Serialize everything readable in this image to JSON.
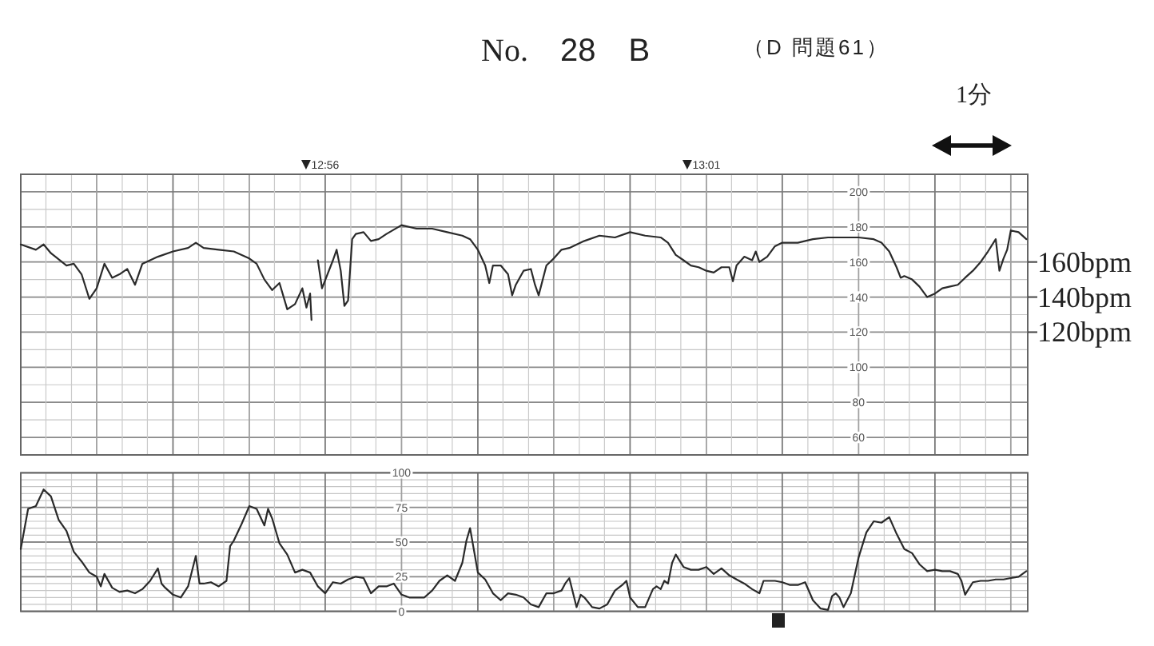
{
  "chart_data": [
    {
      "type": "line",
      "title": "No. 28 B",
      "subtitle": "（D 問題61）",
      "annotations": [
        "1分"
      ],
      "series": [
        {
          "color": "#2a2a2a",
          "x": [
            12.8667,
            12.87,
            12.8717,
            12.8733,
            12.8767,
            12.8783,
            12.88,
            12.8817,
            12.8833,
            12.885,
            12.8867,
            12.8883,
            12.89,
            12.8917,
            12.8933,
            12.8967,
            12.9,
            12.9033,
            12.905,
            12.9067,
            12.91,
            12.9133,
            12.9167,
            12.9183,
            12.92,
            12.9217,
            12.9233,
            12.925,
            12.9267,
            12.9283,
            12.9292,
            12.93,
            12.9303
          ],
          "values": [
            170,
            167,
            170,
            165,
            158,
            159,
            153,
            139,
            145,
            159,
            151,
            153,
            156,
            147,
            159,
            163,
            166,
            168,
            171,
            168,
            167,
            166,
            162,
            159,
            150,
            144,
            148,
            133,
            136,
            145,
            134,
            142,
            127
          ]
        },
        {
          "color": "#2a2a2a",
          "x": [
            12.9317,
            12.9326,
            12.935,
            12.9358,
            12.9367,
            12.9375,
            12.9383,
            12.9392,
            12.94,
            12.9417,
            12.9433,
            12.945,
            12.9467,
            12.95,
            12.9533,
            12.9567,
            12.96,
            12.9633,
            12.965,
            12.9667,
            12.9683,
            12.9692,
            12.97,
            12.9717,
            12.9733,
            12.9742,
            12.975,
            12.9767,
            12.9783,
            12.9792,
            12.98,
            12.9817,
            12.9833,
            12.985,
            12.9867,
            12.99,
            12.9933,
            12.9967,
            13.0,
            13.0033,
            13.0067,
            13.0083,
            13.01,
            13.0117,
            13.0133,
            13.015,
            13.0167,
            13.0183,
            13.02,
            13.0217,
            13.0225,
            13.0233,
            13.025,
            13.0267,
            13.0275,
            13.0283,
            13.03,
            13.0317,
            13.0333,
            13.0367,
            13.04,
            13.0433,
            13.0467,
            13.05,
            13.0533,
            13.055,
            13.0567,
            13.0583,
            13.0592,
            13.06,
            13.0617,
            13.0633,
            13.065,
            13.0667,
            13.0683,
            13.07,
            13.0717,
            13.0733,
            13.075,
            13.0767,
            13.0783,
            13.08,
            13.0808,
            13.0817,
            13.0825,
            13.0833,
            13.085,
            13.0867
          ],
          "values": [
            161,
            145,
            161,
            167,
            155,
            135,
            138,
            173,
            176,
            177,
            172,
            173,
            176,
            181,
            179,
            179,
            177,
            175,
            173,
            167,
            158,
            148,
            158,
            158,
            153,
            141,
            147,
            155,
            156,
            147,
            141,
            158,
            162,
            167,
            168,
            172,
            175,
            174,
            177,
            175,
            174,
            171,
            164,
            161,
            158,
            157,
            155,
            154,
            157,
            157,
            149,
            158,
            163,
            161,
            166,
            160,
            163,
            169,
            171,
            171,
            173,
            174,
            174,
            174,
            173,
            171,
            166,
            157,
            151,
            152,
            150,
            146,
            140,
            142,
            145,
            146,
            147,
            151,
            155,
            160,
            166,
            173,
            155,
            162,
            167,
            178,
            177,
            173
          ]
        }
      ],
      "xlim": [
        12.8667,
        13.087
      ],
      "xticks": [
        {
          "value": 12.8667,
          "label": null
        },
        {
          "value": 12.8722,
          "label": null
        },
        {
          "value": 12.8778,
          "label": null
        },
        {
          "value": 12.8833,
          "label": null
        },
        {
          "value": 12.8889,
          "label": null
        },
        {
          "value": 12.8944,
          "label": null
        },
        {
          "value": 12.9,
          "label": null
        },
        {
          "value": 12.9056,
          "label": null
        },
        {
          "value": 12.9111,
          "label": null
        },
        {
          "value": 12.9167,
          "label": null
        },
        {
          "value": 12.9222,
          "label": null
        },
        {
          "value": 12.9278,
          "label": null
        },
        {
          "value": 12.9333,
          "label": "12:56"
        },
        {
          "value": 12.9389,
          "label": null
        },
        {
          "value": 12.9444,
          "label": null
        },
        {
          "value": 12.95,
          "label": null
        },
        {
          "value": 12.9556,
          "label": null
        },
        {
          "value": 12.9611,
          "label": null
        },
        {
          "value": 12.9667,
          "label": null
        },
        {
          "value": 12.9722,
          "label": null
        },
        {
          "value": 12.9778,
          "label": null
        },
        {
          "value": 12.9833,
          "label": null
        },
        {
          "value": 12.9889,
          "label": null
        },
        {
          "value": 12.9944,
          "label": null
        },
        {
          "value": 13.0,
          "label": null
        },
        {
          "value": 13.0056,
          "label": null
        },
        {
          "value": 13.0111,
          "label": null
        },
        {
          "value": 13.0167,
          "label": "13:01"
        },
        {
          "value": 13.0222,
          "label": null
        },
        {
          "value": 13.0278,
          "label": null
        },
        {
          "value": 13.0333,
          "label": null
        },
        {
          "value": 13.0389,
          "label": null
        },
        {
          "value": 13.0444,
          "label": null
        },
        {
          "value": 13.05,
          "label": null
        },
        {
          "value": 13.0556,
          "label": null
        },
        {
          "value": 13.0611,
          "label": null
        },
        {
          "value": 13.0667,
          "label": null
        },
        {
          "value": 13.0722,
          "label": null
        },
        {
          "value": 13.0778,
          "label": null
        },
        {
          "value": 13.0833,
          "label": null
        }
      ],
      "ylim": [
        50,
        210
      ],
      "yticks": [
        60,
        {
          "value": 70,
          "label": null
        },
        80,
        {
          "value": 90,
          "label": null
        },
        100,
        {
          "value": 110,
          "label": null
        },
        120,
        {
          "value": 130,
          "label": null
        },
        140,
        {
          "value": 150,
          "label": null
        },
        160,
        {
          "value": 170,
          "label": null
        },
        180,
        {
          "value": 190,
          "label": null
        },
        200
      ],
      "y2lim": [
        50,
        210
      ],
      "y2ticks": [
        {
          "value": 160,
          "label": "160bpm"
        },
        {
          "value": 140,
          "label": "140bpm"
        },
        {
          "value": 120,
          "label": "120bpm"
        }
      ],
      "grid": true
    },
    {
      "type": "line",
      "x": [
        12.8667,
        12.8683,
        12.87,
        12.8717,
        12.8733,
        12.875,
        12.8767,
        12.8783,
        12.88,
        12.8817,
        12.8833,
        12.8842,
        12.885,
        12.8867,
        12.8883,
        12.89,
        12.8917,
        12.8933,
        12.895,
        12.8967,
        12.8975,
        12.8983,
        12.9,
        12.9017,
        12.9033,
        12.905,
        12.9058,
        12.9067,
        12.9083,
        12.91,
        12.9117,
        12.9125,
        12.9133,
        12.915,
        12.9167,
        12.9183,
        12.92,
        12.9208,
        12.9217,
        12.9233,
        12.925,
        12.9267,
        12.9283,
        12.93,
        12.9317,
        12.9333,
        12.935,
        12.9367,
        12.9383,
        12.94,
        12.9417,
        12.9433,
        12.945,
        12.9467,
        12.9483,
        12.95,
        12.9517,
        12.9533,
        12.955,
        12.9567,
        12.9583,
        12.96,
        12.9617,
        12.9633,
        12.9642,
        12.965,
        12.9667,
        12.9683,
        12.97,
        12.9717,
        12.9733,
        12.975,
        12.9767,
        12.9783,
        12.98,
        12.9817,
        12.9833,
        12.985,
        12.9858,
        12.9867,
        12.9883,
        12.9892,
        12.99,
        12.9917,
        12.9933,
        12.995,
        12.9967,
        12.9983,
        12.9992,
        13.0,
        13.0017,
        13.0033,
        13.005,
        13.0058,
        13.0067,
        13.0075,
        13.0083,
        13.0092,
        13.01,
        13.0117,
        13.0133,
        13.015,
        13.0167,
        13.0183,
        13.02,
        13.0217,
        13.0233,
        13.025,
        13.0267,
        13.0283,
        13.0292,
        13.03,
        13.0317,
        13.0333,
        13.035,
        13.0367,
        13.0383,
        13.04,
        13.0417,
        13.0433,
        13.0442,
        13.045,
        13.0458,
        13.0467,
        13.0483,
        13.05,
        13.0517,
        13.0533,
        13.055,
        13.0567,
        13.0583,
        13.06,
        13.0617,
        13.0633,
        13.065,
        13.0667,
        13.0683,
        13.07,
        13.0717,
        13.0725,
        13.0733,
        13.075,
        13.0767,
        13.0783,
        13.08,
        13.0817,
        13.0833,
        13.085,
        13.0867
      ],
      "series": [
        {
          "color": "#2a2a2a",
          "values": [
            45,
            74,
            76,
            88,
            83,
            66,
            58,
            43,
            36,
            28,
            25,
            18,
            27,
            17,
            14,
            15,
            13,
            16,
            22,
            31,
            20,
            17,
            12,
            10,
            18,
            40,
            20,
            20,
            21,
            18,
            22,
            47,
            51,
            63,
            76,
            74,
            62,
            74,
            67,
            49,
            41,
            28,
            30,
            28,
            18,
            13,
            21,
            20,
            23,
            25,
            24,
            13,
            18,
            18,
            20,
            12,
            10,
            10,
            10,
            15,
            22,
            26,
            22,
            35,
            51,
            60,
            28,
            23,
            13,
            8,
            13,
            12,
            10,
            5,
            3,
            13,
            13,
            15,
            20,
            24,
            3,
            12,
            10,
            3,
            2,
            5,
            15,
            19,
            22,
            10,
            3,
            3,
            16,
            18,
            16,
            22,
            20,
            35,
            41,
            32,
            30,
            30,
            32,
            27,
            31,
            26,
            23,
            20,
            16,
            13,
            22,
            22,
            22,
            21,
            19,
            19,
            21,
            8,
            2,
            1,
            11,
            13,
            10,
            3,
            13,
            39,
            57,
            65,
            64,
            68,
            56,
            45,
            42,
            34,
            29,
            30,
            29,
            29,
            27,
            22,
            12,
            21,
            22,
            22,
            23,
            23,
            24,
            25,
            29
          ]
        }
      ],
      "xlim": [
        12.8667,
        13.087
      ],
      "xticks": [
        {
          "value": 12.8667,
          "label": null
        },
        {
          "value": 12.8722,
          "label": null
        },
        {
          "value": 12.8778,
          "label": null
        },
        {
          "value": 12.8833,
          "label": null
        },
        {
          "value": 12.8889,
          "label": null
        },
        {
          "value": 12.8944,
          "label": null
        },
        {
          "value": 12.9,
          "label": null
        },
        {
          "value": 12.9056,
          "label": null
        },
        {
          "value": 12.9111,
          "label": null
        },
        {
          "value": 12.9167,
          "label": null
        },
        {
          "value": 12.9222,
          "label": null
        },
        {
          "value": 12.9278,
          "label": null
        },
        {
          "value": 12.9333,
          "label": null
        },
        {
          "value": 12.9389,
          "label": null
        },
        {
          "value": 12.9444,
          "label": null
        },
        {
          "value": 12.95,
          "label": null
        },
        {
          "value": 12.9556,
          "label": null
        },
        {
          "value": 12.9611,
          "label": null
        },
        {
          "value": 12.9667,
          "label": null
        },
        {
          "value": 12.9722,
          "label": null
        },
        {
          "value": 12.9778,
          "label": null
        },
        {
          "value": 12.9833,
          "label": null
        },
        {
          "value": 12.9889,
          "label": null
        },
        {
          "value": 12.9944,
          "label": null
        },
        {
          "value": 13.0,
          "label": null
        },
        {
          "value": 13.0056,
          "label": null
        },
        {
          "value": 13.0111,
          "label": null
        },
        {
          "value": 13.0167,
          "label": null
        },
        {
          "value": 13.0222,
          "label": null
        },
        {
          "value": 13.0278,
          "label": null
        },
        {
          "value": 13.0333,
          "label": null
        },
        {
          "value": 13.0389,
          "label": null
        },
        {
          "value": 13.0444,
          "label": null
        },
        {
          "value": 13.05,
          "label": null
        },
        {
          "value": 13.0556,
          "label": null
        },
        {
          "value": 13.0611,
          "label": null
        },
        {
          "value": 13.0667,
          "label": null
        },
        {
          "value": 13.0722,
          "label": null
        },
        {
          "value": 13.0778,
          "label": null
        },
        {
          "value": 13.0833,
          "label": null
        }
      ],
      "ylim": [
        0,
        100
      ],
      "yticks": [
        0,
        {
          "value": 5,
          "label": null
        },
        {
          "value": 10,
          "label": null
        },
        {
          "value": 15,
          "label": null
        },
        {
          "value": 20,
          "label": null
        },
        25,
        {
          "value": 30,
          "label": null
        },
        {
          "value": 35,
          "label": null
        },
        {
          "value": 40,
          "label": null
        },
        {
          "value": 45,
          "label": null
        },
        50,
        {
          "value": 55,
          "label": null
        },
        {
          "value": 60,
          "label": null
        },
        {
          "value": 65,
          "label": null
        },
        {
          "value": 70,
          "label": null
        },
        75,
        {
          "value": 80,
          "label": null
        },
        {
          "value": 85,
          "label": null
        },
        {
          "value": 90,
          "label": null
        },
        {
          "value": 95,
          "label": null
        },
        100
      ],
      "grid": true,
      "tick_labels": "y"
    }
  ]
}
